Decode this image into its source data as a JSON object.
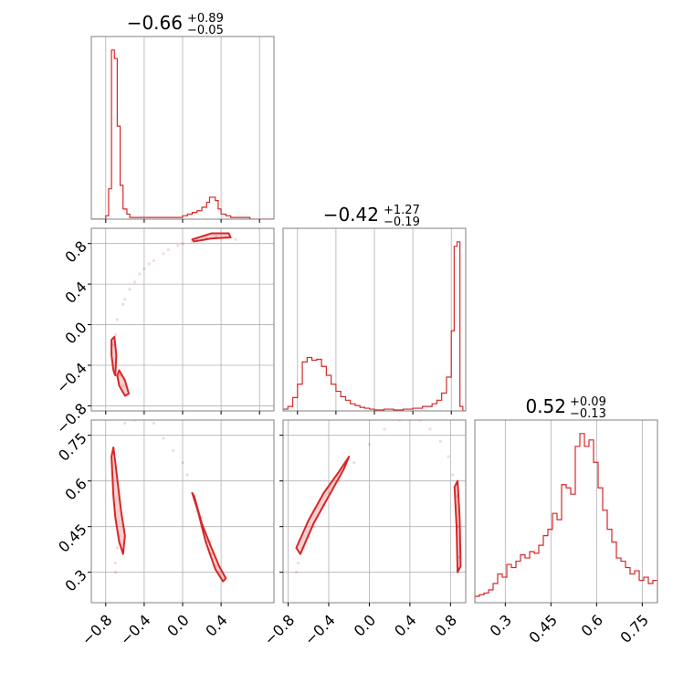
{
  "colors": {
    "accent": "#d62728",
    "grid": "#b0b0b0",
    "frame": "#808080",
    "background": "#ffffff"
  },
  "titles": {
    "p0": {
      "value": "−0.66",
      "plus": "+0.89",
      "minus": "−0.05"
    },
    "p1": {
      "value": "−0.42",
      "plus": "+1.27",
      "minus": "−0.19"
    },
    "p2": {
      "value": "0.52",
      "plus": "+0.09",
      "minus": "−0.13"
    }
  },
  "chart_data": [
    {
      "type": "histogram",
      "panel": "p0-marginal",
      "title": "−0.66 (+0.89 / −0.05)",
      "xlim": [
        -0.95,
        0.95
      ],
      "x_ticks": [
        -0.8,
        -0.4,
        0.0,
        0.4,
        0.8
      ],
      "grid": true,
      "bins": [
        -0.95,
        -0.9,
        -0.85,
        -0.8,
        -0.77,
        -0.74,
        -0.71,
        -0.68,
        -0.65,
        -0.62,
        -0.58,
        -0.55,
        -0.5,
        -0.4,
        -0.3,
        -0.2,
        -0.1,
        0.0,
        0.05,
        0.1,
        0.15,
        0.2,
        0.25,
        0.28,
        0.31,
        0.34,
        0.37,
        0.4,
        0.45,
        0.5,
        0.6,
        0.7,
        0.8,
        0.95
      ],
      "counts": [
        0,
        0,
        0,
        2,
        18,
        100,
        95,
        55,
        20,
        6,
        3,
        1,
        1,
        1,
        1,
        1,
        1,
        2,
        3,
        4,
        5,
        7,
        10,
        13,
        13,
        11,
        6,
        3,
        2,
        1,
        1,
        0,
        0
      ]
    },
    {
      "type": "histogram",
      "panel": "p1-marginal",
      "title": "−0.42 (+1.27 / −0.19)",
      "xlim": [
        -0.95,
        0.95
      ],
      "x_ticks": [
        -0.8,
        -0.4,
        0.0,
        0.4,
        0.8
      ],
      "grid": true,
      "bins": [
        -0.95,
        -0.9,
        -0.85,
        -0.8,
        -0.75,
        -0.7,
        -0.65,
        -0.6,
        -0.55,
        -0.5,
        -0.45,
        -0.4,
        -0.35,
        -0.3,
        -0.25,
        -0.2,
        -0.15,
        -0.1,
        -0.05,
        0.0,
        0.1,
        0.2,
        0.3,
        0.4,
        0.5,
        0.6,
        0.65,
        0.7,
        0.75,
        0.8,
        0.83,
        0.86,
        0.89,
        0.92,
        0.95
      ],
      "counts": [
        2,
        5,
        15,
        30,
        55,
        60,
        57,
        58,
        50,
        40,
        30,
        22,
        16,
        12,
        8,
        6,
        4,
        3,
        2,
        1,
        2,
        1,
        2,
        3,
        5,
        8,
        12,
        20,
        38,
        90,
        185,
        190,
        5,
        0
      ]
    },
    {
      "type": "histogram",
      "panel": "p2-marginal",
      "title": "0.52 (+0.09 / −0.13)",
      "xlim": [
        0.2,
        0.8
      ],
      "x_ticks": [
        0.3,
        0.45,
        0.6,
        0.75
      ],
      "grid": true,
      "bins": [
        0.2,
        0.215,
        0.23,
        0.245,
        0.26,
        0.275,
        0.29,
        0.305,
        0.32,
        0.335,
        0.35,
        0.365,
        0.38,
        0.395,
        0.41,
        0.425,
        0.44,
        0.455,
        0.47,
        0.485,
        0.5,
        0.515,
        0.53,
        0.545,
        0.56,
        0.575,
        0.59,
        0.605,
        0.62,
        0.635,
        0.65,
        0.665,
        0.68,
        0.695,
        0.71,
        0.725,
        0.74,
        0.755,
        0.77,
        0.785,
        0.8
      ],
      "counts": [
        4,
        5,
        6,
        8,
        12,
        18,
        16,
        24,
        22,
        26,
        30,
        28,
        32,
        31,
        36,
        42,
        46,
        56,
        52,
        74,
        72,
        68,
        98,
        106,
        98,
        102,
        88,
        72,
        58,
        46,
        38,
        28,
        26,
        22,
        18,
        20,
        14,
        16,
        12,
        14
      ]
    },
    {
      "type": "scatter",
      "panel": "p0-vs-p1",
      "xlim": [
        -0.95,
        0.95
      ],
      "ylim": [
        -0.85,
        0.95
      ],
      "x_ticks": [
        -0.8,
        -0.4,
        0.0,
        0.4,
        0.8
      ],
      "y_ticks": [
        -0.8,
        -0.4,
        0.0,
        0.4,
        0.8
      ],
      "grid": true,
      "points": [
        [
          -0.72,
          -0.2
        ],
        [
          -0.7,
          -0.1
        ],
        [
          -0.68,
          0.05
        ],
        [
          -0.62,
          0.2
        ],
        [
          -0.55,
          0.35
        ],
        [
          -0.45,
          0.5
        ],
        [
          -0.35,
          0.6
        ],
        [
          -0.2,
          0.7
        ],
        [
          -0.05,
          0.78
        ],
        [
          0.1,
          0.82
        ],
        [
          0.25,
          0.86
        ],
        [
          0.45,
          0.86
        ],
        [
          0.55,
          0.84
        ],
        [
          -0.5,
          0.42
        ],
        [
          -0.3,
          0.63
        ],
        [
          -0.15,
          0.74
        ],
        [
          0.0,
          0.8
        ],
        [
          0.15,
          0.84
        ],
        [
          0.35,
          0.87
        ],
        [
          -0.65,
          -0.5
        ],
        [
          -0.62,
          -0.6
        ],
        [
          -0.58,
          -0.7
        ],
        [
          -0.6,
          0.25
        ],
        [
          -0.4,
          0.55
        ]
      ],
      "contours": [
        [
          [
            -0.74,
            -0.15
          ],
          [
            -0.71,
            -0.12
          ],
          [
            -0.69,
            -0.3
          ],
          [
            -0.7,
            -0.5
          ],
          [
            -0.72,
            -0.45
          ],
          [
            -0.74,
            -0.3
          ]
        ],
        [
          [
            -0.66,
            -0.45
          ],
          [
            -0.6,
            -0.55
          ],
          [
            -0.56,
            -0.68
          ],
          [
            -0.6,
            -0.7
          ],
          [
            -0.66,
            -0.6
          ],
          [
            -0.68,
            -0.5
          ]
        ],
        [
          [
            0.1,
            0.84
          ],
          [
            0.3,
            0.9
          ],
          [
            0.48,
            0.9
          ],
          [
            0.5,
            0.86
          ],
          [
            0.3,
            0.85
          ],
          [
            0.12,
            0.82
          ]
        ]
      ]
    },
    {
      "type": "scatter",
      "panel": "p0-vs-p2",
      "xlim": [
        -0.95,
        0.95
      ],
      "ylim": [
        0.2,
        0.8
      ],
      "x_ticks": [
        -0.8,
        -0.4,
        0.0,
        0.4
      ],
      "y_ticks": [
        0.3,
        0.45,
        0.6,
        0.75
      ],
      "grid": true,
      "points": [
        [
          -0.6,
          0.79
        ],
        [
          -0.5,
          0.8
        ],
        [
          -0.3,
          0.79
        ],
        [
          -0.2,
          0.74
        ],
        [
          -0.1,
          0.7
        ],
        [
          0.0,
          0.66
        ],
        [
          0.05,
          0.62
        ],
        [
          0.1,
          0.56
        ],
        [
          0.15,
          0.5
        ],
        [
          0.2,
          0.45
        ],
        [
          0.25,
          0.4
        ],
        [
          0.3,
          0.36
        ],
        [
          0.35,
          0.32
        ],
        [
          -0.7,
          0.33
        ],
        [
          -0.68,
          0.38
        ],
        [
          -0.66,
          0.42
        ],
        [
          -0.7,
          0.3
        ],
        [
          0.2,
          0.48
        ],
        [
          0.28,
          0.4
        ],
        [
          0.38,
          0.3
        ]
      ],
      "contours": [
        [
          [
            -0.74,
            0.68
          ],
          [
            -0.72,
            0.55
          ],
          [
            -0.7,
            0.48
          ],
          [
            -0.66,
            0.4
          ],
          [
            -0.62,
            0.36
          ],
          [
            -0.6,
            0.42
          ],
          [
            -0.64,
            0.5
          ],
          [
            -0.67,
            0.58
          ],
          [
            -0.7,
            0.66
          ],
          [
            -0.72,
            0.71
          ]
        ],
        [
          [
            0.12,
            0.55
          ],
          [
            0.2,
            0.46
          ],
          [
            0.3,
            0.38
          ],
          [
            0.38,
            0.32
          ],
          [
            0.45,
            0.28
          ],
          [
            0.42,
            0.27
          ],
          [
            0.34,
            0.31
          ],
          [
            0.24,
            0.4
          ],
          [
            0.16,
            0.5
          ],
          [
            0.1,
            0.56
          ]
        ]
      ]
    },
    {
      "type": "scatter",
      "panel": "p1-vs-p2",
      "xlim": [
        -0.85,
        0.95
      ],
      "ylim": [
        0.2,
        0.8
      ],
      "x_ticks": [
        -0.8,
        -0.4,
        0.0,
        0.4,
        0.8
      ],
      "y_ticks": [
        0.3,
        0.45,
        0.6,
        0.75
      ],
      "grid": true,
      "points": [
        [
          -0.7,
          0.33
        ],
        [
          -0.65,
          0.38
        ],
        [
          -0.55,
          0.45
        ],
        [
          -0.45,
          0.52
        ],
        [
          -0.3,
          0.6
        ],
        [
          -0.15,
          0.66
        ],
        [
          0.0,
          0.72
        ],
        [
          0.15,
          0.77
        ],
        [
          0.3,
          0.8
        ],
        [
          0.5,
          0.8
        ],
        [
          0.6,
          0.77
        ],
        [
          0.7,
          0.73
        ],
        [
          0.78,
          0.68
        ],
        [
          0.82,
          0.62
        ],
        [
          0.86,
          0.55
        ],
        [
          0.88,
          0.45
        ],
        [
          0.88,
          0.35
        ],
        [
          -0.72,
          0.3
        ],
        [
          -0.6,
          0.42
        ]
      ],
      "contours": [
        [
          [
            -0.72,
            0.38
          ],
          [
            -0.6,
            0.47
          ],
          [
            -0.45,
            0.56
          ],
          [
            -0.3,
            0.63
          ],
          [
            -0.2,
            0.68
          ],
          [
            -0.25,
            0.64
          ],
          [
            -0.4,
            0.55
          ],
          [
            -0.55,
            0.46
          ],
          [
            -0.68,
            0.36
          ]
        ],
        [
          [
            0.84,
            0.58
          ],
          [
            0.86,
            0.45
          ],
          [
            0.87,
            0.3
          ],
          [
            0.9,
            0.32
          ],
          [
            0.89,
            0.48
          ],
          [
            0.87,
            0.6
          ]
        ]
      ]
    }
  ]
}
